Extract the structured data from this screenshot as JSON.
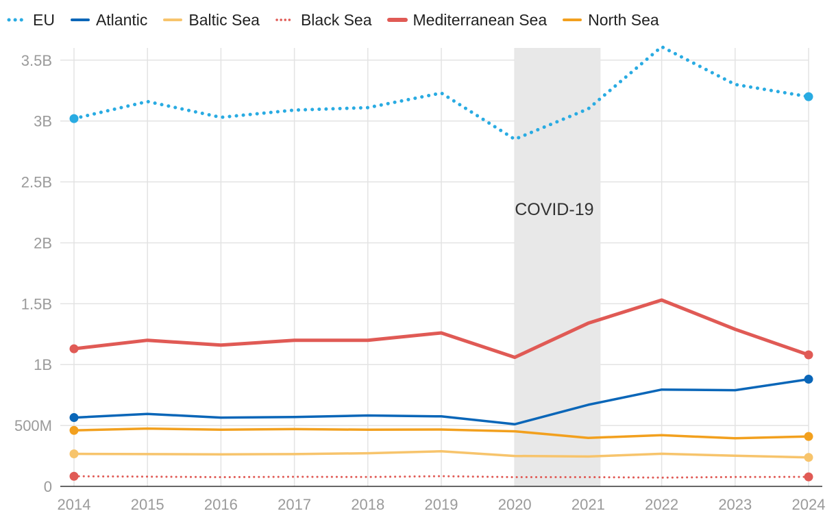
{
  "chart_data": {
    "type": "line",
    "x": [
      "2014",
      "2015",
      "2016",
      "2017",
      "2018",
      "2019",
      "2020",
      "2021",
      "2022",
      "2023",
      "2024"
    ],
    "ylim": [
      0,
      3600000000
    ],
    "yticks": [
      0,
      500000000,
      1000000000,
      1500000000,
      2000000000,
      2500000000,
      3000000000,
      3500000000
    ],
    "ytick_labels": [
      "0",
      "500M",
      "1B",
      "1.5B",
      "2B",
      "2.5B",
      "3B",
      "3.5B"
    ],
    "grid": true,
    "legend_position": "top-left",
    "annotation": {
      "label": "COVID-19",
      "x_start": "2020",
      "x_end": "2021"
    },
    "series": [
      {
        "name": "EU",
        "color": "#29abe2",
        "style": "dotted",
        "width": 5,
        "values": [
          3020000000,
          3160000000,
          3030000000,
          3090000000,
          3110000000,
          3230000000,
          2850000000,
          3100000000,
          3610000000,
          3300000000,
          3200000000
        ]
      },
      {
        "name": "Atlantic",
        "color": "#0a66b8",
        "style": "solid",
        "width": 3.5,
        "values": [
          565000000,
          595000000,
          565000000,
          570000000,
          582000000,
          575000000,
          510000000,
          670000000,
          795000000,
          790000000,
          880000000
        ]
      },
      {
        "name": "Baltic Sea",
        "color": "#f7c46c",
        "style": "solid",
        "width": 3.5,
        "values": [
          267000000,
          265000000,
          263000000,
          265000000,
          272000000,
          288000000,
          250000000,
          245000000,
          268000000,
          252000000,
          238000000
        ]
      },
      {
        "name": "Black Sea",
        "color": "#e05a55",
        "style": "dotted",
        "width": 3,
        "values": [
          83000000,
          80000000,
          76000000,
          79000000,
          77000000,
          84000000,
          76000000,
          76000000,
          72000000,
          77000000,
          78000000
        ]
      },
      {
        "name": "Mediterranean Sea",
        "color": "#e05a55",
        "style": "solid",
        "width": 5,
        "values": [
          1130000000,
          1200000000,
          1160000000,
          1200000000,
          1200000000,
          1260000000,
          1060000000,
          1340000000,
          1530000000,
          1290000000,
          1080000000
        ]
      },
      {
        "name": "North Sea",
        "color": "#f2a01e",
        "style": "solid",
        "width": 3.5,
        "values": [
          460000000,
          475000000,
          465000000,
          470000000,
          465000000,
          467000000,
          452000000,
          398000000,
          420000000,
          395000000,
          410000000
        ]
      }
    ]
  }
}
